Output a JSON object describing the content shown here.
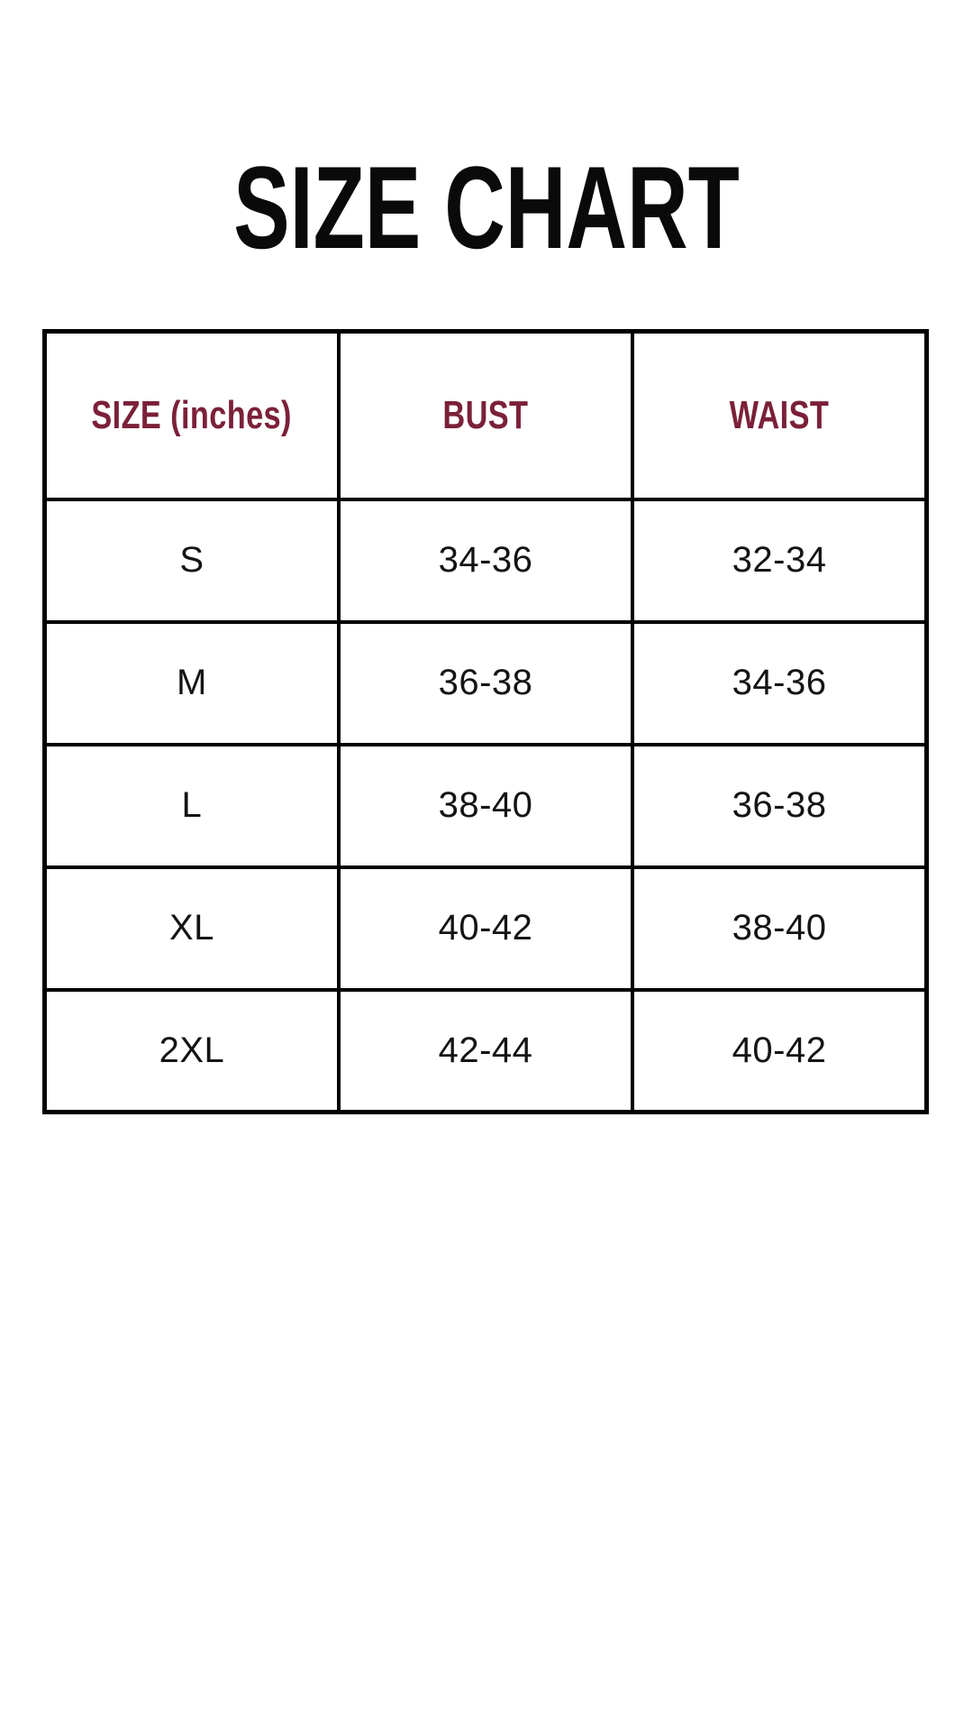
{
  "page": {
    "title": "SIZE CHART",
    "background_color": "#ffffff",
    "title_color": "#0a0a0a"
  },
  "size_chart": {
    "border_color": "#000000",
    "header_text_color": "#7b2039",
    "body_text_color": "#141414",
    "columns": {
      "size": "SIZE (inches)",
      "bust": "BUST",
      "waist": "WAIST"
    },
    "rows": [
      {
        "size": "S",
        "bust": "34-36",
        "waist": "32-34"
      },
      {
        "size": "M",
        "bust": "36-38",
        "waist": "34-36"
      },
      {
        "size": "L",
        "bust": "38-40",
        "waist": "36-38"
      },
      {
        "size": "XL",
        "bust": "40-42",
        "waist": "38-40"
      },
      {
        "size": "2XL",
        "bust": "42-44",
        "waist": "40-42"
      }
    ]
  },
  "chart_data": {
    "type": "table",
    "title": "SIZE CHART",
    "unit": "inches",
    "columns": [
      "SIZE (inches)",
      "BUST",
      "WAIST"
    ],
    "rows": [
      [
        "S",
        "34-36",
        "32-34"
      ],
      [
        "M",
        "36-38",
        "34-36"
      ],
      [
        "L",
        "38-40",
        "36-38"
      ],
      [
        "XL",
        "40-42",
        "38-40"
      ],
      [
        "2XL",
        "42-44",
        "40-42"
      ]
    ]
  }
}
